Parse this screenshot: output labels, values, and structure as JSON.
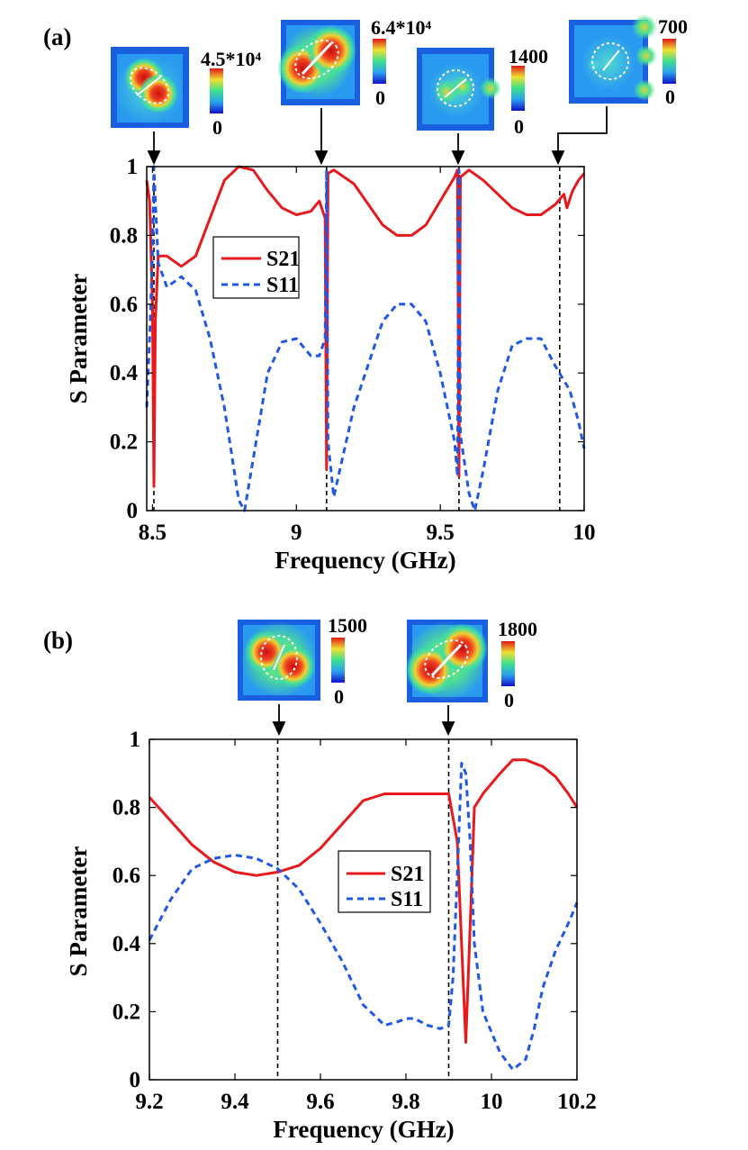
{
  "figure": {
    "background": "#ffffff"
  },
  "colors": {
    "s21": "#e8191c",
    "s11": "#1f57e8",
    "axis": "#000000",
    "marker": "#000000"
  },
  "panels": [
    {
      "id": "a",
      "label": "(a)",
      "insets": [
        {
          "cbar_max": "4.5*10⁴",
          "cbar_min": "0",
          "marker_freq": 8.505,
          "pattern": "pair-diagonal-small"
        },
        {
          "cbar_max": "6.4*10⁴",
          "cbar_min": "0",
          "marker_freq": 9.105,
          "pattern": "pair-diagonal-large"
        },
        {
          "cbar_max": "1400",
          "cbar_min": "0",
          "marker_freq": 9.565,
          "pattern": "small-hotspot"
        },
        {
          "cbar_max": "700",
          "cbar_min": "0",
          "marker_freq": 9.915,
          "pattern": "faint-ring"
        }
      ]
    },
    {
      "id": "b",
      "label": "(b)",
      "insets": [
        {
          "cbar_max": "1500",
          "cbar_min": "0",
          "marker_freq": 9.5,
          "pattern": "pair-vertical"
        },
        {
          "cbar_max": "1800",
          "cbar_min": "0",
          "marker_freq": 9.9,
          "pattern": "pair-diagonal-large"
        }
      ]
    }
  ],
  "chart_data": [
    {
      "type": "line",
      "panel": "a",
      "xlabel": "Frequency (GHz)",
      "ylabel": "S Parameter",
      "xlim": [
        8.48,
        10.0
      ],
      "ylim": [
        0,
        1
      ],
      "xticks": [
        8.5,
        9,
        9.5,
        10
      ],
      "xtick_labels": [
        "8.5",
        "9",
        "9.5",
        "10"
      ],
      "yticks": [
        0,
        0.2,
        0.4,
        0.6,
        0.8,
        1
      ],
      "ytick_labels": [
        "0",
        "0.2",
        "0.4",
        "0.6",
        "0.8",
        "1"
      ],
      "legend_position": "upper-left-center",
      "marker_lines": [
        8.505,
        9.105,
        9.565,
        9.915
      ],
      "series": [
        {
          "name": "S21",
          "style": "solid",
          "x": [
            8.48,
            8.49,
            8.5,
            8.505,
            8.51,
            8.52,
            8.55,
            8.6,
            8.65,
            8.7,
            8.75,
            8.8,
            8.85,
            8.9,
            8.95,
            9.0,
            9.05,
            9.08,
            9.1,
            9.105,
            9.11,
            9.13,
            9.2,
            9.3,
            9.35,
            9.4,
            9.45,
            9.5,
            9.55,
            9.56,
            9.565,
            9.57,
            9.6,
            9.65,
            9.7,
            9.75,
            9.8,
            9.85,
            9.9,
            9.92,
            9.93,
            9.94,
            9.96,
            9.98,
            10.0
          ],
          "y": [
            0.96,
            0.9,
            0.6,
            0.07,
            0.55,
            0.74,
            0.74,
            0.71,
            0.74,
            0.85,
            0.96,
            1.0,
            0.99,
            0.93,
            0.88,
            0.86,
            0.87,
            0.9,
            0.85,
            0.12,
            0.98,
            0.99,
            0.95,
            0.83,
            0.8,
            0.8,
            0.83,
            0.9,
            0.97,
            0.99,
            0.1,
            0.97,
            0.99,
            0.96,
            0.92,
            0.88,
            0.86,
            0.86,
            0.89,
            0.91,
            0.92,
            0.88,
            0.93,
            0.96,
            0.98
          ]
        },
        {
          "name": "S11",
          "style": "dashed",
          "x": [
            8.48,
            8.49,
            8.5,
            8.505,
            8.51,
            8.52,
            8.55,
            8.6,
            8.65,
            8.7,
            8.75,
            8.8,
            8.82,
            8.85,
            8.9,
            8.95,
            9.0,
            9.05,
            9.08,
            9.1,
            9.105,
            9.11,
            9.13,
            9.2,
            9.3,
            9.35,
            9.4,
            9.45,
            9.5,
            9.55,
            9.56,
            9.565,
            9.57,
            9.6,
            9.62,
            9.65,
            9.7,
            9.75,
            9.8,
            9.85,
            9.9,
            9.95,
            9.98,
            10.0
          ],
          "y": [
            0.3,
            0.5,
            0.75,
            1.0,
            0.9,
            0.72,
            0.65,
            0.68,
            0.64,
            0.5,
            0.3,
            0.03,
            0.0,
            0.15,
            0.4,
            0.49,
            0.5,
            0.45,
            0.45,
            0.5,
            0.99,
            0.2,
            0.04,
            0.3,
            0.55,
            0.6,
            0.6,
            0.55,
            0.4,
            0.2,
            0.1,
            0.99,
            0.22,
            0.05,
            0.0,
            0.12,
            0.35,
            0.48,
            0.5,
            0.5,
            0.42,
            0.35,
            0.26,
            0.18
          ]
        }
      ]
    },
    {
      "type": "line",
      "panel": "b",
      "xlabel": "Frequency (GHz)",
      "ylabel": "S Parameter",
      "xlim": [
        9.2,
        10.2
      ],
      "ylim": [
        0,
        1
      ],
      "xticks": [
        9.2,
        9.4,
        9.6,
        9.8,
        10,
        10.2
      ],
      "xtick_labels": [
        "9.2",
        "9.4",
        "9.6",
        "9.8",
        "10",
        "10.2"
      ],
      "yticks": [
        0,
        0.2,
        0.4,
        0.6,
        0.8,
        1
      ],
      "ytick_labels": [
        "0",
        "0.2",
        "0.4",
        "0.6",
        "0.8",
        "1"
      ],
      "legend_position": "center-right",
      "marker_lines": [
        9.5,
        9.9
      ],
      "series": [
        {
          "name": "S21",
          "style": "solid",
          "x": [
            9.2,
            9.25,
            9.3,
            9.35,
            9.4,
            9.45,
            9.5,
            9.55,
            9.6,
            9.65,
            9.7,
            9.75,
            9.8,
            9.85,
            9.88,
            9.9,
            9.92,
            9.93,
            9.94,
            9.95,
            9.96,
            9.98,
            10.0,
            10.02,
            10.05,
            10.08,
            10.1,
            10.12,
            10.15,
            10.18,
            10.2
          ],
          "y": [
            0.83,
            0.76,
            0.69,
            0.64,
            0.61,
            0.6,
            0.61,
            0.63,
            0.68,
            0.75,
            0.82,
            0.84,
            0.84,
            0.84,
            0.84,
            0.84,
            0.7,
            0.4,
            0.11,
            0.45,
            0.8,
            0.84,
            0.87,
            0.9,
            0.94,
            0.94,
            0.93,
            0.92,
            0.89,
            0.84,
            0.8
          ]
        },
        {
          "name": "S11",
          "style": "dashed",
          "x": [
            9.2,
            9.25,
            9.3,
            9.35,
            9.4,
            9.45,
            9.5,
            9.55,
            9.6,
            9.65,
            9.7,
            9.75,
            9.78,
            9.8,
            9.82,
            9.85,
            9.88,
            9.9,
            9.91,
            9.92,
            9.93,
            9.94,
            9.95,
            9.96,
            9.97,
            9.98,
            10.0,
            10.02,
            10.05,
            10.08,
            10.1,
            10.12,
            10.15,
            10.18,
            10.2
          ],
          "y": [
            0.41,
            0.53,
            0.62,
            0.65,
            0.66,
            0.65,
            0.62,
            0.56,
            0.46,
            0.35,
            0.22,
            0.16,
            0.17,
            0.18,
            0.18,
            0.16,
            0.15,
            0.16,
            0.3,
            0.6,
            0.93,
            0.9,
            0.7,
            0.4,
            0.3,
            0.2,
            0.14,
            0.08,
            0.03,
            0.06,
            0.15,
            0.27,
            0.38,
            0.46,
            0.52
          ]
        }
      ]
    }
  ]
}
